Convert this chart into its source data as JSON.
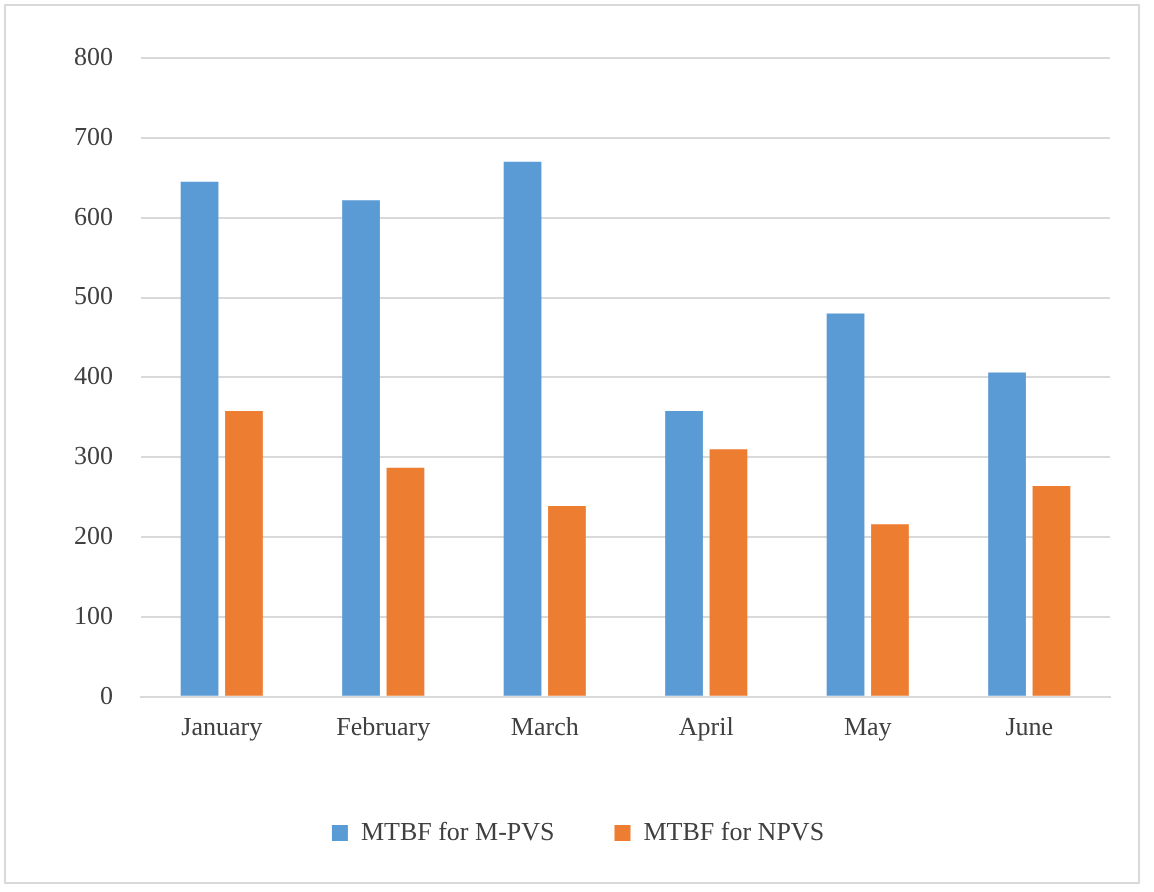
{
  "chart_data": {
    "type": "bar",
    "categories": [
      "January",
      "February",
      "March",
      "April",
      "May",
      "June"
    ],
    "series": [
      {
        "name": "MTBF for M-PVS",
        "color": "#5b9bd5",
        "values": [
          645,
          622,
          670,
          358,
          480,
          406
        ]
      },
      {
        "name": "MTBF for NPVS",
        "color": "#ed7d31",
        "values": [
          358,
          287,
          239,
          310,
          216,
          264
        ]
      }
    ],
    "ylim": [
      0,
      800
    ],
    "yticks": [
      0,
      100,
      200,
      300,
      400,
      500,
      600,
      700,
      800
    ],
    "grid": "y",
    "legend": "bottom"
  }
}
